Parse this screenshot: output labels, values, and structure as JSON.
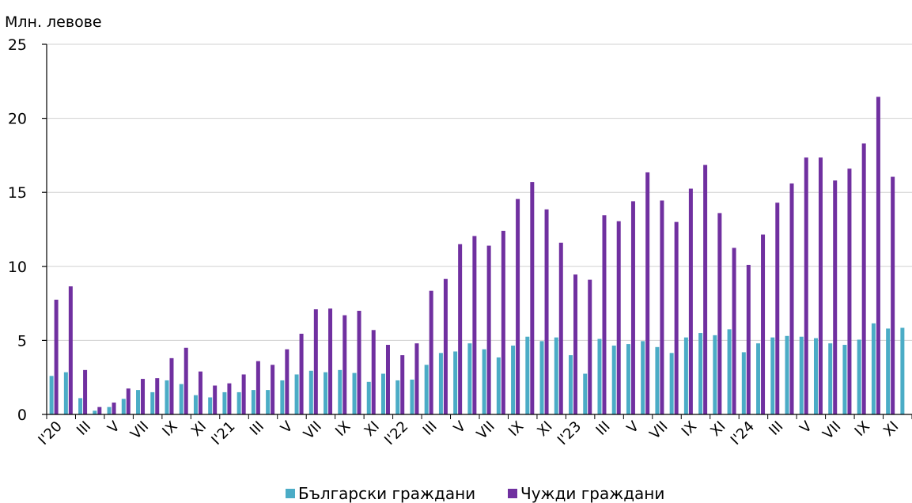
{
  "chart_data": {
    "type": "bar",
    "ylabel": "Млн. левове",
    "ylim": [
      0,
      25
    ],
    "yticks": [
      0,
      5,
      10,
      15,
      20,
      25
    ],
    "grid": "horizontal",
    "legend_position": "bottom",
    "tick_labels": [
      "I'20",
      "III",
      "V",
      "VII",
      "IX",
      "XI",
      "I'21",
      "III",
      "V",
      "VII",
      "IX",
      "XI",
      "I'22",
      "III",
      "V",
      "VII",
      "IX",
      "XI",
      "I'23",
      "III",
      "V",
      "VII",
      "IX",
      "XI",
      "I'24",
      "III",
      "V",
      "VII",
      "IX",
      "XI"
    ],
    "series": [
      {
        "name": "Български граждани",
        "color": "#4bacc6",
        "values": [
          2.6,
          2.85,
          1.1,
          0.25,
          0.5,
          1.05,
          1.65,
          1.5,
          2.3,
          2.05,
          1.3,
          1.15,
          1.5,
          1.5,
          1.65,
          1.65,
          2.3,
          2.7,
          2.95,
          2.85,
          3.0,
          2.8,
          2.2,
          2.75,
          2.3,
          2.35,
          3.35,
          4.15,
          4.25,
          4.8,
          4.4,
          3.85,
          4.65,
          5.25,
          4.95,
          5.2,
          4.0,
          2.75,
          5.1,
          4.65,
          4.75,
          4.95,
          4.55,
          4.15,
          5.2,
          5.5,
          5.35,
          5.75,
          4.2,
          4.8,
          5.2,
          5.3,
          5.25,
          5.15,
          4.8,
          4.7,
          5.05,
          6.15,
          5.8,
          5.85
        ]
      },
      {
        "name": "Чужди граждани",
        "color": "#7030a0",
        "values": [
          7.75,
          8.65,
          3.0,
          0.5,
          0.8,
          1.75,
          2.4,
          2.45,
          3.8,
          4.5,
          2.9,
          1.95,
          2.1,
          2.7,
          3.6,
          3.35,
          4.4,
          5.45,
          7.1,
          7.15,
          6.7,
          7.0,
          5.7,
          4.7,
          4.0,
          4.8,
          8.35,
          9.15,
          11.5,
          12.05,
          11.4,
          12.4,
          14.55,
          15.7,
          13.85,
          11.6,
          9.45,
          9.1,
          13.45,
          13.05,
          14.4,
          16.35,
          14.45,
          13.0,
          15.25,
          16.85,
          13.6,
          11.25,
          10.1,
          12.15,
          14.3,
          15.6,
          17.35,
          17.35,
          15.8,
          16.6,
          18.3,
          21.45,
          16.05,
          null
        ]
      }
    ]
  }
}
